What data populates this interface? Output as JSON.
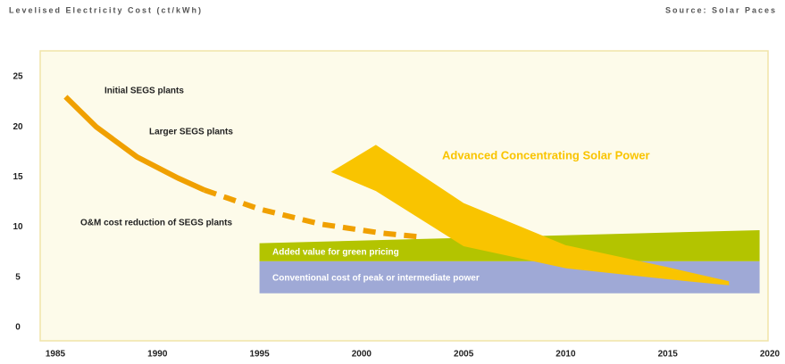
{
  "chart_data": {
    "type": "line",
    "title": "Levelised Electricity Cost (ct/kWh)",
    "source": "Source: Solar Paces",
    "xlim": [
      1985,
      2020
    ],
    "xticks": [
      1985,
      1990,
      1995,
      2000,
      2005,
      2010,
      2015,
      2020
    ],
    "ylim": [
      0,
      25
    ],
    "yticks": [
      0,
      5,
      10,
      15,
      20,
      25
    ],
    "series": [
      {
        "style": "solid",
        "color": "#f0a000",
        "x": [
          1985.5,
          1987,
          1989,
          1991,
          1992.3
        ],
        "values": [
          23,
          20,
          17,
          14.9,
          13.7
        ]
      },
      {
        "style": "dashed",
        "color": "#f0a000",
        "x": [
          1992.3,
          1995,
          1998,
          2001,
          2003
        ],
        "values": [
          13.7,
          11.8,
          10.3,
          9.4,
          9.0
        ]
      }
    ],
    "areas": [
      {
        "color": "#b3c400",
        "x": [
          1995,
          2019.5
        ],
        "lower": [
          6.6,
          6.6
        ],
        "upper": [
          8.4,
          9.7
        ]
      },
      {
        "color": "#9fa9d6",
        "x": [
          1995,
          2019.5
        ],
        "lower": [
          3.4,
          3.4
        ],
        "upper": [
          6.6,
          6.6
        ]
      },
      {
        "color": "#f9c400",
        "x": [
          1998.5,
          2000.7,
          2005,
          2010,
          2015,
          2018
        ],
        "lower": [
          15.5,
          13.6,
          8.1,
          5.9,
          4.8,
          4.2
        ],
        "upper": [
          15.5,
          18.2,
          12.4,
          8.2,
          6.0,
          4.6
        ]
      }
    ],
    "annotations": [
      "Initial SEGS plants",
      "Larger SEGS plants",
      "O&M cost reduction of SEGS plants",
      "Advanced Concentrating Solar Power",
      "Added value for green pricing",
      "Conventional cost of peak or intermediate power"
    ]
  }
}
